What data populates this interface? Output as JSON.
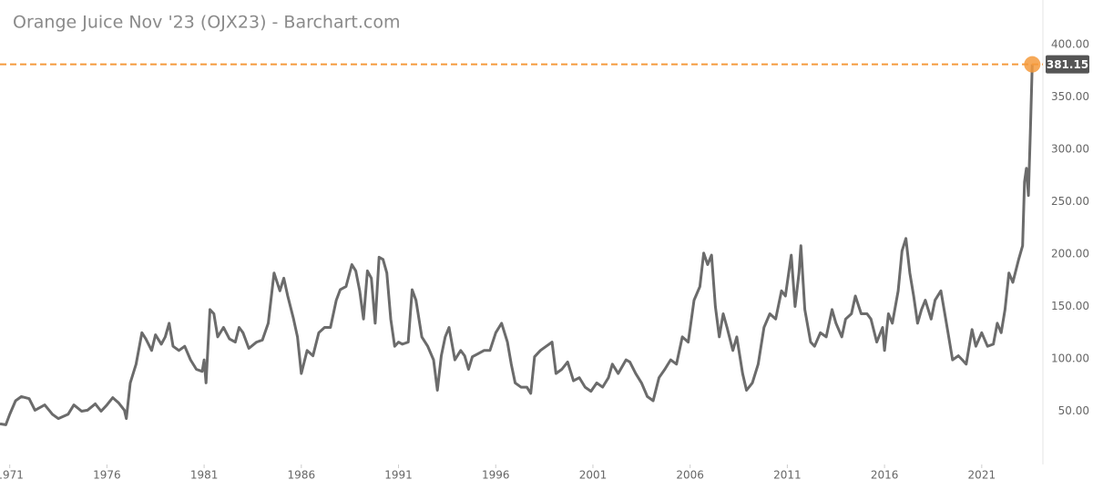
{
  "chart_data": {
    "type": "line",
    "title": "Orange Juice Nov '23 (OJX23) - Barchart.com",
    "x": [
      1970.5,
      1970.8,
      1971.0,
      1971.3,
      1971.6,
      1972.0,
      1972.3,
      1972.8,
      1973.2,
      1973.5,
      1974.0,
      1974.3,
      1974.7,
      1975.0,
      1975.4,
      1975.7,
      1976.0,
      1976.3,
      1976.6,
      1976.9,
      1977.0,
      1977.2,
      1977.5,
      1977.8,
      1978.0,
      1978.3,
      1978.5,
      1978.8,
      1979.0,
      1979.2,
      1979.4,
      1979.7,
      1980.0,
      1980.3,
      1980.6,
      1980.9,
      1981.0,
      1981.1,
      1981.3,
      1981.5,
      1981.7,
      1982.0,
      1982.3,
      1982.6,
      1982.8,
      1983.0,
      1983.3,
      1983.7,
      1984.0,
      1984.3,
      1984.6,
      1984.9,
      1985.1,
      1985.3,
      1985.6,
      1985.8,
      1986.0,
      1986.3,
      1986.6,
      1986.9,
      1987.2,
      1987.5,
      1987.8,
      1988.0,
      1988.3,
      1988.6,
      1988.8,
      1989.0,
      1989.2,
      1989.4,
      1989.6,
      1989.8,
      1990.0,
      1990.2,
      1990.4,
      1990.6,
      1990.8,
      1991.0,
      1991.2,
      1991.5,
      1991.7,
      1991.9,
      1992.2,
      1992.5,
      1992.8,
      1993.0,
      1993.2,
      1993.4,
      1993.6,
      1993.9,
      1994.2,
      1994.4,
      1994.6,
      1994.8,
      1995.1,
      1995.4,
      1995.7,
      1996.0,
      1996.3,
      1996.6,
      1996.8,
      1997.0,
      1997.3,
      1997.6,
      1997.8,
      1998.0,
      1998.3,
      1998.6,
      1998.9,
      1999.1,
      1999.4,
      1999.7,
      2000.0,
      2000.3,
      2000.6,
      2000.9,
      2001.2,
      2001.5,
      2001.8,
      2002.0,
      2002.3,
      2002.7,
      2002.9,
      2003.2,
      2003.5,
      2003.8,
      2004.1,
      2004.4,
      2004.7,
      2005.0,
      2005.3,
      2005.6,
      2005.9,
      2006.2,
      2006.5,
      2006.7,
      2006.9,
      2007.1,
      2007.3,
      2007.5,
      2007.7,
      2007.9,
      2008.2,
      2008.4,
      2008.7,
      2008.9,
      2009.2,
      2009.5,
      2009.8,
      2010.1,
      2010.4,
      2010.7,
      2010.9,
      2011.2,
      2011.4,
      2011.6,
      2011.7,
      2011.9,
      2012.2,
      2012.4,
      2012.7,
      2013.0,
      2013.3,
      2013.5,
      2013.8,
      2014.0,
      2014.3,
      2014.5,
      2014.8,
      2015.1,
      2015.3,
      2015.6,
      2015.9,
      2016.0,
      2016.2,
      2016.4,
      2016.7,
      2016.9,
      2017.1,
      2017.3,
      2017.5,
      2017.7,
      2017.9,
      2018.1,
      2018.4,
      2018.6,
      2018.9,
      2019.1,
      2019.3,
      2019.5,
      2019.8,
      2020.0,
      2020.2,
      2020.5,
      2020.7,
      2021.0,
      2021.3,
      2021.6,
      2021.8,
      2022.0,
      2022.2,
      2022.4,
      2022.6,
      2022.9,
      2023.1,
      2023.2,
      2023.3,
      2023.4,
      2023.5,
      2023.6
    ],
    "values": [
      38,
      37,
      47,
      60,
      64,
      62,
      51,
      56,
      47,
      43,
      47,
      56,
      50,
      51,
      57,
      50,
      56,
      63,
      58,
      51,
      43,
      77,
      95,
      125,
      119,
      108,
      123,
      114,
      121,
      134,
      112,
      108,
      112,
      99,
      90,
      88,
      99,
      77,
      147,
      143,
      121,
      130,
      119,
      116,
      130,
      125,
      110,
      116,
      118,
      134,
      182,
      165,
      177,
      160,
      138,
      121,
      86,
      108,
      103,
      125,
      130,
      130,
      156,
      166,
      169,
      190,
      184,
      165,
      138,
      184,
      177,
      134,
      197,
      195,
      182,
      138,
      112,
      116,
      114,
      116,
      166,
      156,
      121,
      112,
      99,
      70,
      103,
      121,
      130,
      99,
      108,
      103,
      90,
      102,
      105,
      108,
      108,
      125,
      134,
      116,
      95,
      77,
      73,
      73,
      67,
      102,
      108,
      112,
      116,
      86,
      90,
      97,
      79,
      82,
      73,
      69,
      77,
      73,
      82,
      95,
      86,
      99,
      97,
      86,
      77,
      64,
      60,
      82,
      90,
      99,
      95,
      121,
      116,
      156,
      169,
      201,
      190,
      199,
      150,
      121,
      143,
      130,
      108,
      121,
      86,
      70,
      77,
      95,
      130,
      143,
      138,
      165,
      160,
      199,
      150,
      182,
      208,
      147,
      116,
      112,
      125,
      121,
      147,
      134,
      121,
      138,
      143,
      160,
      143,
      143,
      138,
      116,
      130,
      108,
      143,
      134,
      165,
      203,
      215,
      182,
      160,
      134,
      147,
      156,
      138,
      156,
      165,
      143,
      121,
      99,
      103,
      99,
      95,
      128,
      112,
      125,
      112,
      114,
      134,
      125,
      147,
      182,
      173,
      195,
      208,
      269,
      282,
      256,
      316,
      381.15
    ],
    "color": "#6b6b6b",
    "highlight_color": "#f59a3c",
    "xlim": [
      1970.5,
      2024.1
    ],
    "xticks": [
      1971,
      1976,
      1981,
      1986,
      1991,
      1996,
      2001,
      2006,
      2011,
      2016,
      2021
    ],
    "ylim": [
      0,
      440
    ],
    "yticks": [
      {
        "value": 50,
        "label": "50.00"
      },
      {
        "value": 100,
        "label": "100.00"
      },
      {
        "value": 150,
        "label": "150.00"
      },
      {
        "value": 200,
        "label": "200.00"
      },
      {
        "value": 250,
        "label": "250.00"
      },
      {
        "value": 300,
        "label": "300.00"
      },
      {
        "value": 350,
        "label": "350.00"
      },
      {
        "value": 400,
        "label": "400.00"
      }
    ],
    "grid": false
  }
}
